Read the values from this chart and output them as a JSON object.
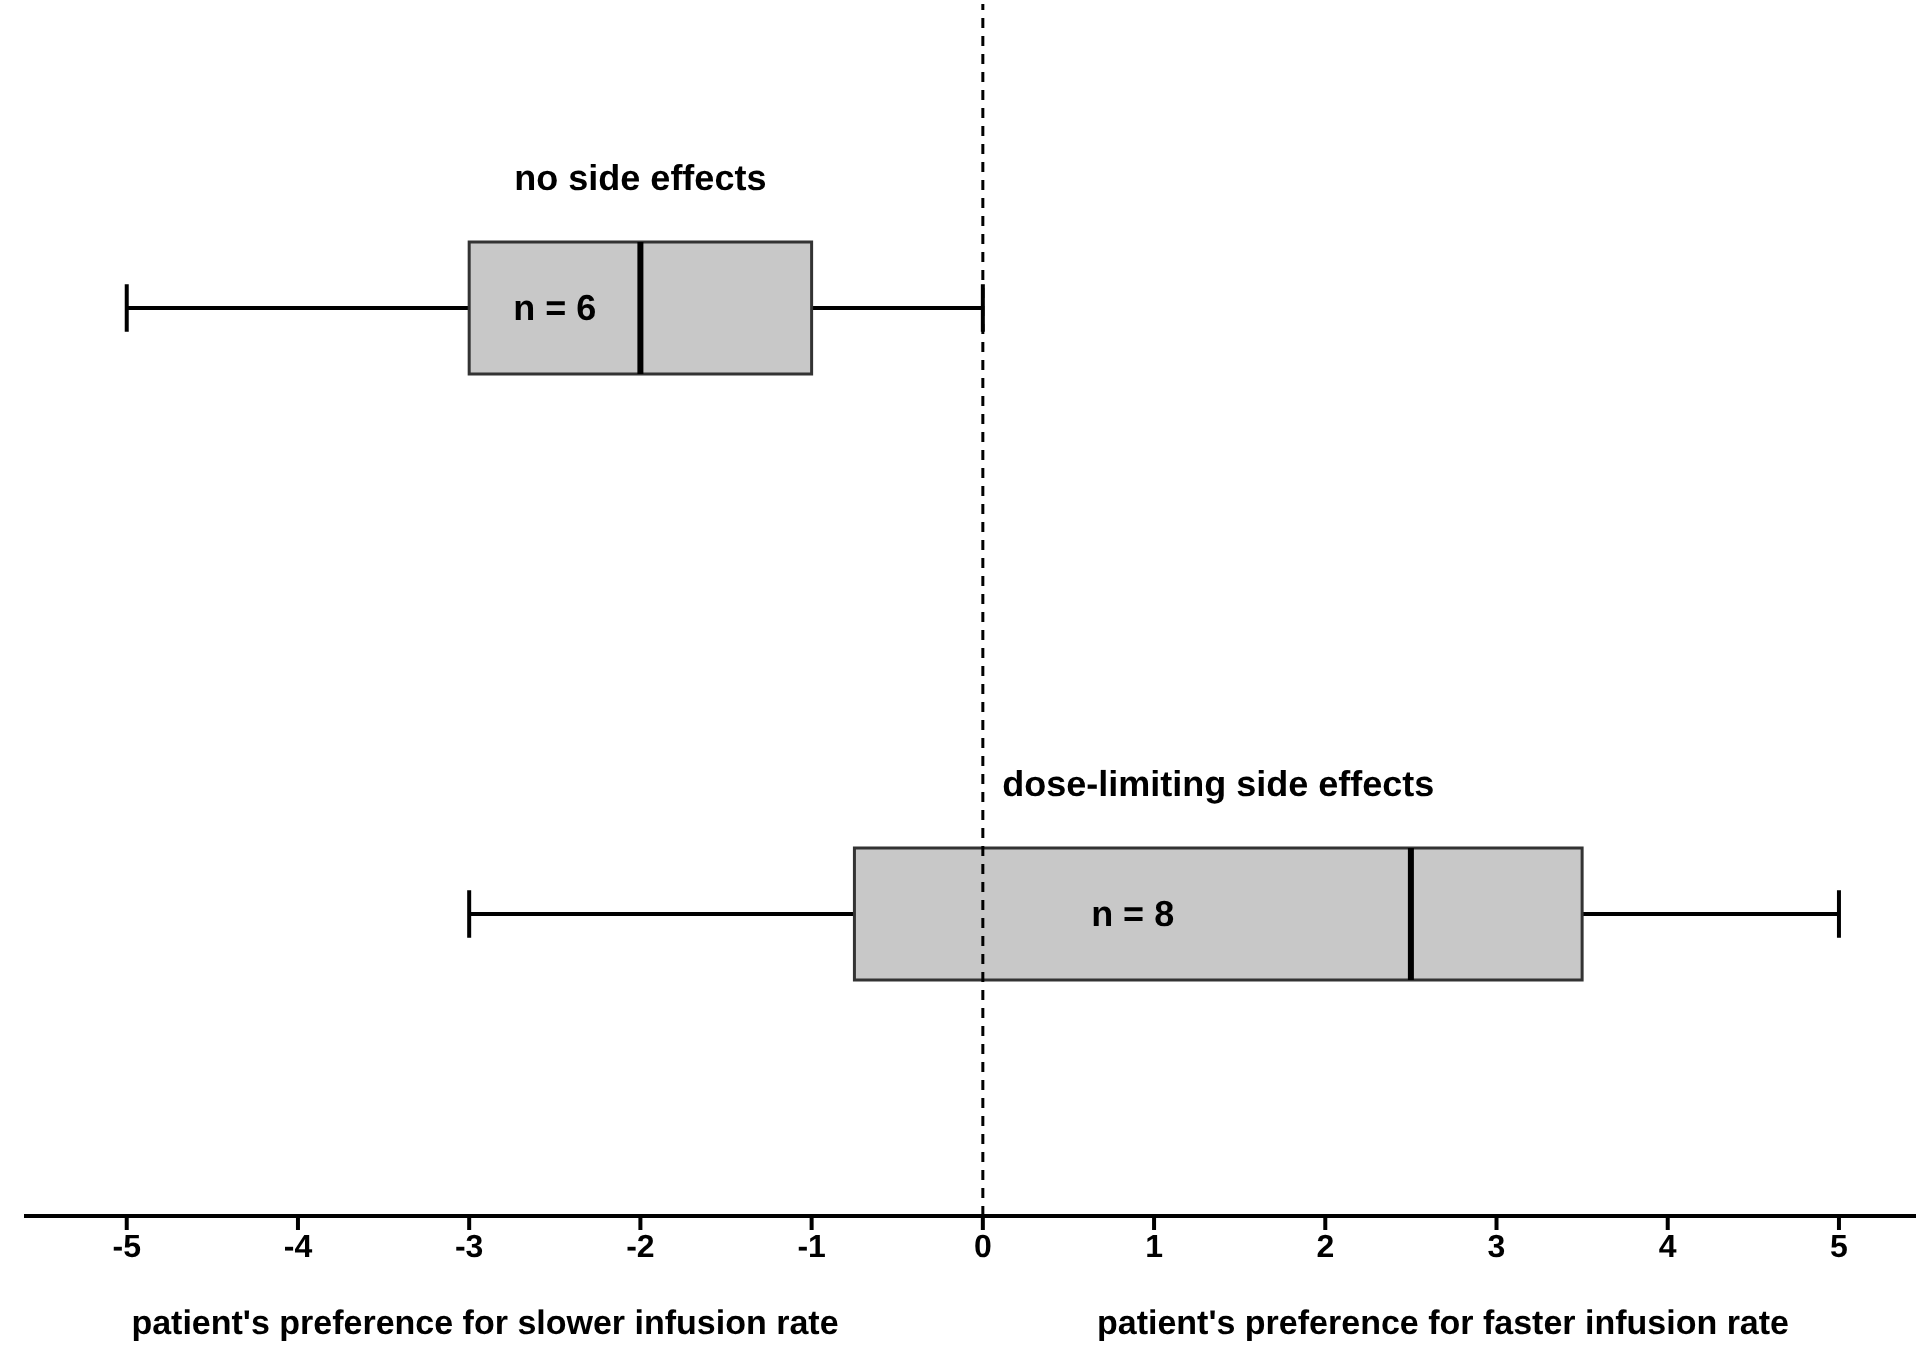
{
  "chart_data": {
    "type": "box",
    "orientation": "horizontal",
    "categories": [
      null,
      null
    ],
    "boxes": [
      {
        "low": -5,
        "q1": -3,
        "median": -2,
        "q3": -1,
        "high": 0
      },
      {
        "low": -3,
        "q1": -0.75,
        "median": 2.5,
        "q3": 3.5,
        "high": 5
      }
    ],
    "color": "#c8c8c8",
    "xlim": [
      -5.6,
      5.45
    ],
    "xticks": [
      -5,
      -4,
      -3,
      -2,
      -1,
      0,
      1,
      2,
      3,
      4,
      5
    ],
    "tick_labels": "x",
    "ref_lines": [
      {
        "axis": "x",
        "value": 0,
        "line_style": "dashed"
      }
    ],
    "annotations": [
      "no side effects",
      "n = 6",
      "dose-limiting side effects",
      "n = 8",
      "patient's preference for slower infusion rate",
      "patient's preference for faster infusion rate"
    ]
  }
}
